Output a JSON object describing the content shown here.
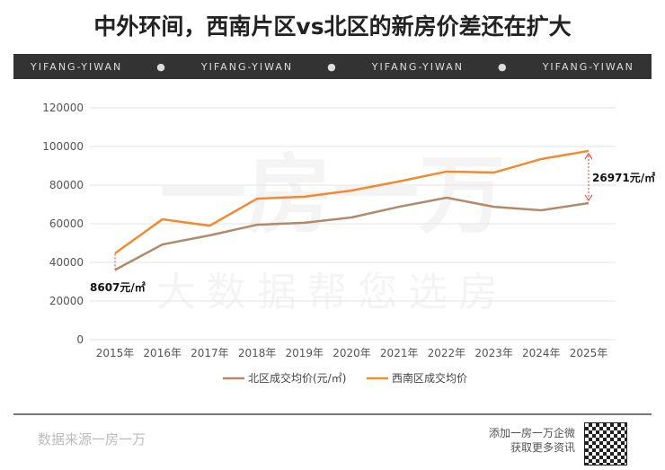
{
  "title": "中外环间，西南片区vs北区的新房价差还在扩大",
  "band": [
    "YIFANG-YIWAN",
    "●",
    "YIFANG-YIWAN",
    "●",
    "YIFANG-YIWAN",
    "●",
    "YIFANG-YIWAN"
  ],
  "watermark": [
    "一房一万",
    "大数据帮您选房"
  ],
  "chart_data": {
    "type": "line",
    "categories": [
      "2015年",
      "2016年",
      "2017年",
      "2018年",
      "2019年",
      "2020年",
      "2021年",
      "2022年",
      "2023年",
      "2024年",
      "2025年"
    ],
    "series": [
      {
        "name": "北区成交均价(元/㎡)",
        "color": "#b08a6a",
        "values": [
          36100,
          49300,
          54000,
          59500,
          60500,
          63300,
          68800,
          73500,
          68800,
          67000,
          70700
        ]
      },
      {
        "name": "西南区成交均价",
        "color": "#f28a30",
        "values": [
          44700,
          62300,
          59000,
          73000,
          74000,
          77200,
          81900,
          87000,
          86500,
          93500,
          97700
        ]
      }
    ],
    "ylim": [
      0,
      120000
    ],
    "yticks": [
      "0",
      "20000",
      "40000",
      "60000",
      "80000",
      "100000",
      "120000"
    ],
    "grid": true,
    "legend": "bottom",
    "annotations": [
      "8607元/㎡",
      "26971元/㎡"
    ]
  },
  "footer": {
    "source": "数据来源一房一万",
    "promo1": "添加一房一万企微",
    "promo2": "获取更多资讯"
  }
}
